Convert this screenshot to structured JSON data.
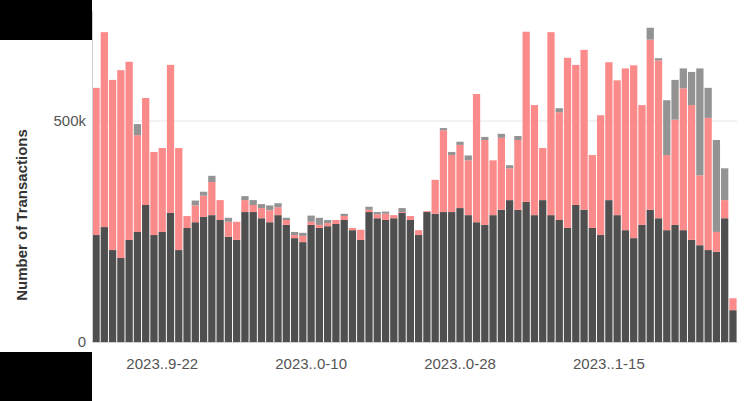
{
  "chart_data": {
    "type": "bar",
    "stacked": true,
    "grid": true,
    "y_label": "Number of Transactions",
    "categories": [
      null,
      null,
      null,
      null,
      null,
      null,
      null,
      null,
      "2023..9-22",
      null,
      null,
      null,
      null,
      null,
      null,
      null,
      null,
      null,
      null,
      null,
      null,
      null,
      null,
      null,
      null,
      null,
      "2023..0-10",
      null,
      null,
      null,
      null,
      null,
      null,
      null,
      null,
      null,
      null,
      null,
      null,
      null,
      null,
      null,
      null,
      null,
      "2023..0-28",
      null,
      null,
      null,
      null,
      null,
      null,
      null,
      null,
      null,
      null,
      null,
      null,
      null,
      null,
      null,
      null,
      null,
      "2023..1-15",
      null,
      null,
      null,
      null,
      null,
      null,
      null,
      null,
      null,
      null,
      null,
      null,
      null,
      null,
      null
    ],
    "series": [
      {
        "color": "#4f4f4f",
        "values": [
          242000,
          260000,
          208000,
          190000,
          231000,
          249000,
          310000,
          242000,
          249000,
          292000,
          208000,
          258000,
          271000,
          283000,
          287000,
          276000,
          238000,
          231000,
          294000,
          294000,
          280000,
          271000,
          287000,
          265000,
          235000,
          226000,
          265000,
          258000,
          262000,
          267000,
          276000,
          253000,
          231000,
          294000,
          280000,
          276000,
          280000,
          292000,
          276000,
          242000,
          294000,
          290000,
          294000,
          294000,
          303000,
          287000,
          271000,
          265000,
          287000,
          299000,
          321000,
          299000,
          317000,
          287000,
          321000,
          287000,
          276000,
          258000,
          310000,
          299000,
          258000,
          242000,
          321000,
          287000,
          253000,
          235000,
          265000,
          299000,
          280000,
          253000,
          265000,
          253000,
          231000,
          219000,
          208000,
          204000,
          280000,
          72000
        ]
      },
      {
        "color": "#fb8a8a",
        "values": [
          333000,
          441000,
          385000,
          425000,
          403000,
          219000,
          242000,
          188000,
          190000,
          335000,
          231000,
          27000,
          38000,
          48000,
          75000,
          45000,
          34000,
          41000,
          27000,
          16000,
          23000,
          27000,
          18000,
          11000,
          7000,
          14000,
          7000,
          7000,
          7000,
          9000,
          9000,
          5000,
          23000,
          5000,
          9000,
          14000,
          7000,
          2000,
          9000,
          11000,
          2000,
          77000,
          185000,
          129000,
          143000,
          124000,
          290000,
          192000,
          124000,
          163000,
          72000,
          158000,
          385000,
          249000,
          118000,
          414000,
          244000,
          385000,
          317000,
          362000,
          165000,
          271000,
          312000,
          305000,
          366000,
          391000,
          271000,
          385000,
          357000,
          170000,
          238000,
          321000,
          305000,
          158000,
          299000,
          45000,
          41000,
          27000
        ]
      },
      {
        "color": "#939393",
        "values": [
          0,
          0,
          0,
          0,
          0,
          25000,
          0,
          0,
          0,
          0,
          0,
          0,
          11000,
          9000,
          14000,
          0,
          9000,
          0,
          9000,
          11000,
          9000,
          11000,
          9000,
          5000,
          7000,
          7000,
          14000,
          16000,
          7000,
          0,
          5000,
          0,
          0,
          7000,
          5000,
          5000,
          0,
          9000,
          0,
          0,
          0,
          0,
          5000,
          7000,
          7000,
          11000,
          0,
          7000,
          0,
          9000,
          7000,
          9000,
          0,
          0,
          0,
          0,
          9000,
          0,
          0,
          0,
          0,
          0,
          0,
          0,
          0,
          0,
          0,
          27000,
          5000,
          124000,
          90000,
          45000,
          75000,
          242000,
          68000,
          208000,
          72000,
          0
        ]
      }
    ],
    "ylim": [
      0,
      750000
    ],
    "yticks": [
      0,
      {
        "value": 500000,
        "label": "500k"
      }
    ]
  }
}
